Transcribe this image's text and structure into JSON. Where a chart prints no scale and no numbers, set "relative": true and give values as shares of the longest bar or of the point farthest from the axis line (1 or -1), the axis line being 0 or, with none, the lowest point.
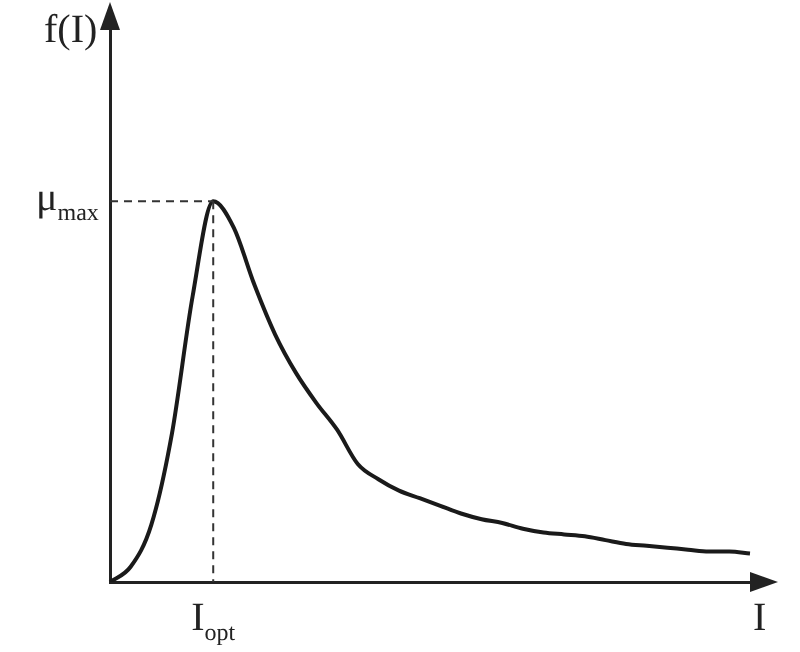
{
  "chart_data": {
    "type": "line",
    "xlabel": "I",
    "ylabel": "f(I)",
    "relative": true,
    "grid": false,
    "legend": false,
    "tick_labels": false,
    "marker": "none",
    "line_style": "solid",
    "categories": [
      null,
      null,
      null,
      null,
      null,
      null,
      null,
      null,
      null,
      null,
      null,
      null,
      null,
      null,
      null,
      null,
      null,
      null,
      null,
      null,
      null,
      null,
      null,
      null,
      null,
      null,
      null,
      null,
      null,
      null,
      null,
      null
    ],
    "series": [
      {
        "color": "#1a1a1a",
        "values": [
          0,
          0.04,
          0.15,
          0.39,
          0.75,
          1,
          0.93,
          0.78,
          0.65,
          0.55,
          0.47,
          0.4,
          0.31,
          0.27,
          0.24,
          0.22,
          0.2,
          0.18,
          0.165,
          0.155,
          0.14,
          0.13,
          0.125,
          0.12,
          0.11,
          0.1,
          0.095,
          0.09,
          0.085,
          0.08,
          0.08,
          0.075
        ]
      }
    ],
    "annotations": [
      "μ$_{max}$",
      "I$_{opt}$"
    ]
  }
}
